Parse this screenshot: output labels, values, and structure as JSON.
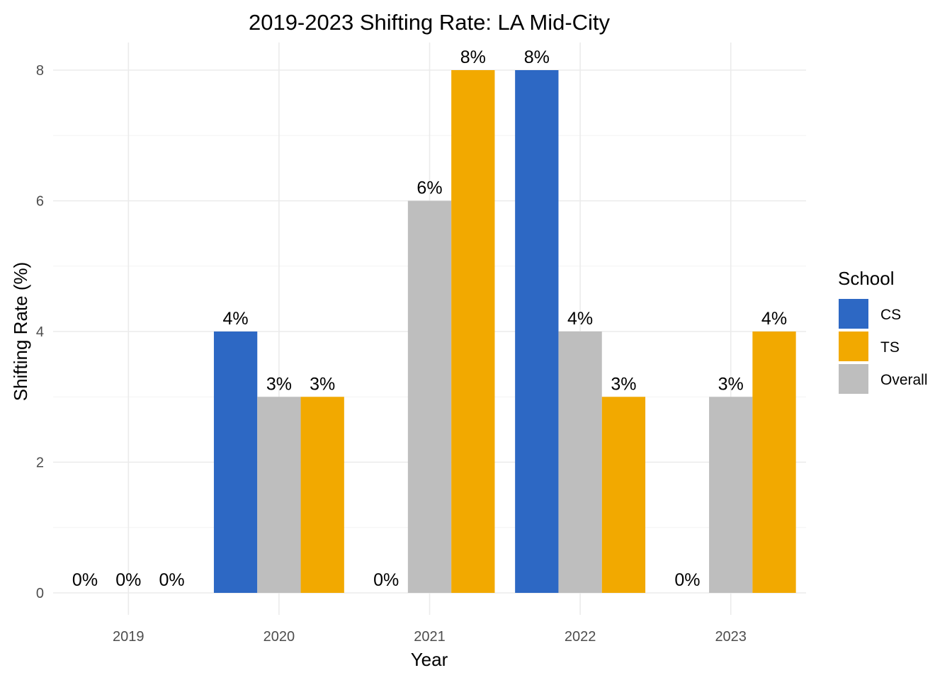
{
  "chart_data": {
    "type": "bar",
    "title": "2019-2023 Shifting Rate: LA Mid-City",
    "xlabel": "Year",
    "ylabel": "Shifting Rate (%)",
    "categories": [
      "2019",
      "2020",
      "2021",
      "2022",
      "2023"
    ],
    "ylim": [
      0,
      8.4
    ],
    "yticks": [
      0,
      2,
      4,
      6,
      8
    ],
    "grid": true,
    "legend": {
      "title": "School",
      "position": "right"
    },
    "series": [
      {
        "name": "CS",
        "color": "#2d68c4",
        "values": [
          0,
          4,
          0,
          8,
          0
        ],
        "labels": [
          "0%",
          "4%",
          "0%",
          "8%",
          "0%"
        ]
      },
      {
        "name": "Overall",
        "color": "#bebebe",
        "values": [
          0,
          3,
          6,
          4,
          3
        ],
        "labels": [
          "0%",
          "3%",
          "6%",
          "4%",
          "3%"
        ]
      },
      {
        "name": "TS",
        "color": "#f2a900",
        "values": [
          0,
          3,
          8,
          3,
          4
        ],
        "labels": [
          "0%",
          "3%",
          "8%",
          "3%",
          "4%"
        ]
      }
    ],
    "legend_order": [
      "CS",
      "TS",
      "Overall"
    ],
    "visible_bars": [
      [
        false,
        true,
        false,
        true,
        false
      ],
      [
        false,
        true,
        true,
        true,
        true
      ],
      [
        false,
        true,
        true,
        true,
        true
      ]
    ],
    "visible_value_labels": [
      [
        true,
        true,
        true,
        true,
        true
      ],
      [
        true,
        true,
        true,
        true,
        true
      ],
      [
        true,
        true,
        true,
        true,
        true
      ]
    ]
  }
}
